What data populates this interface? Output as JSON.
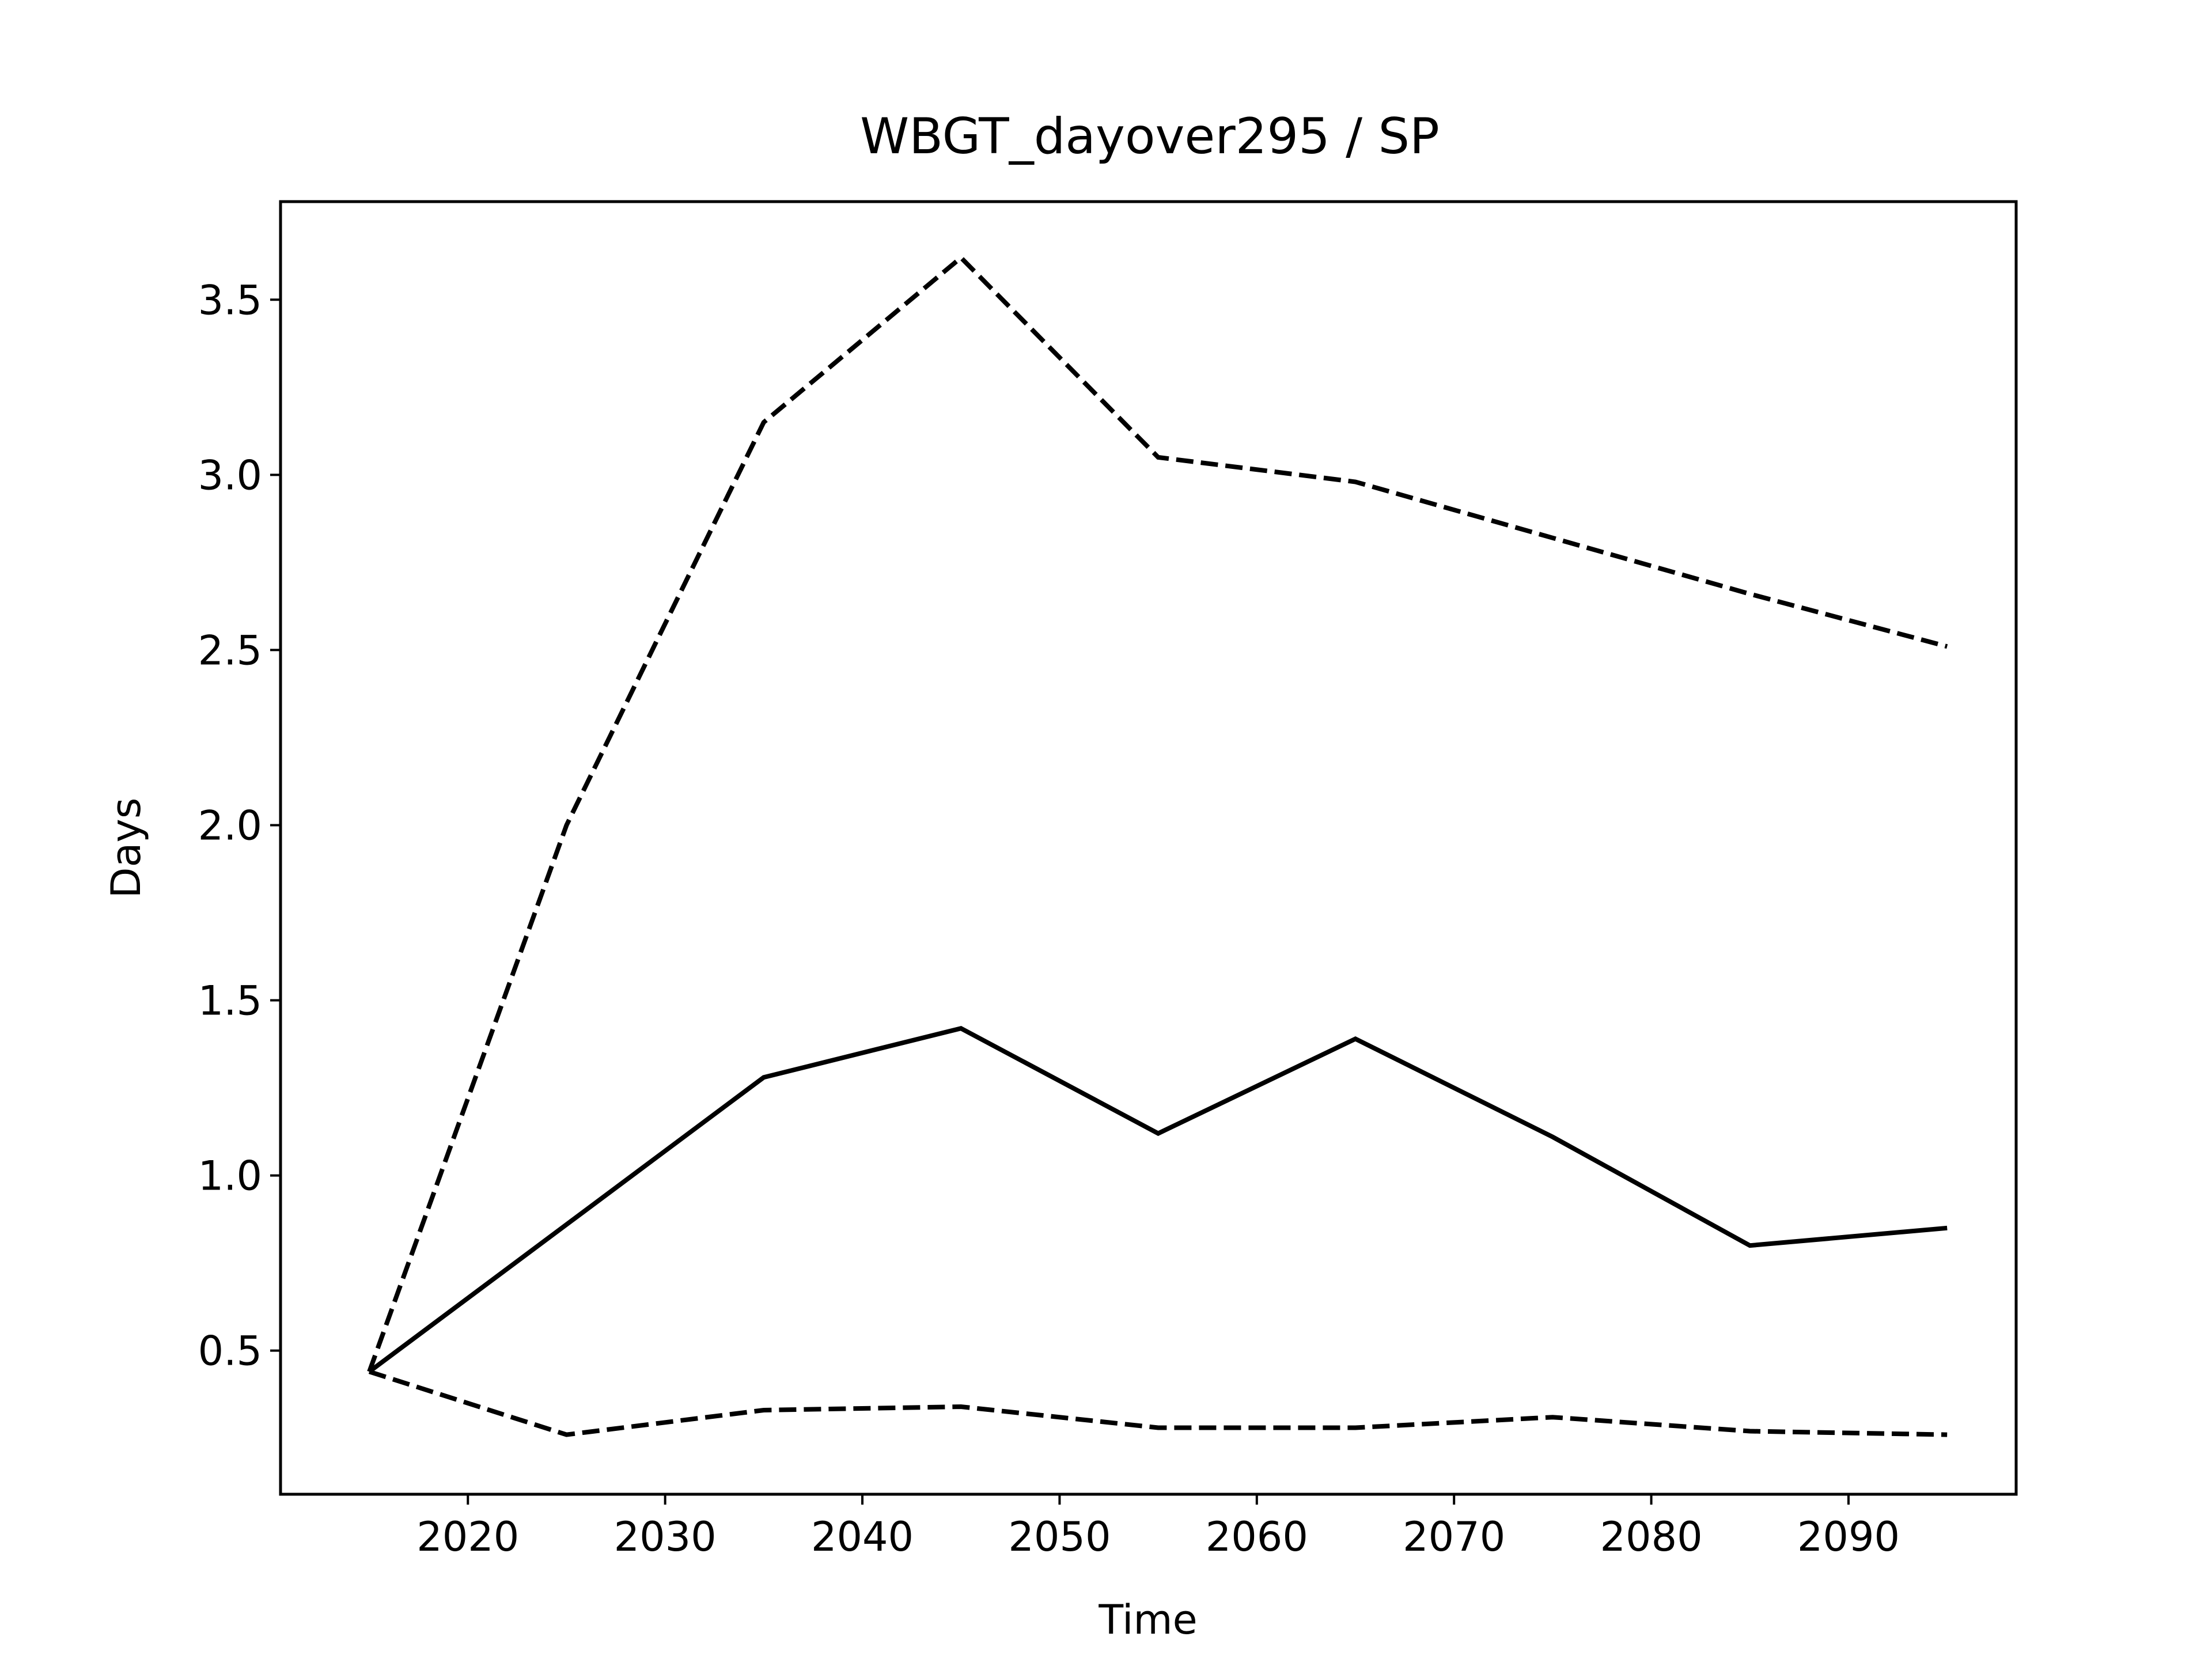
{
  "chart_data": {
    "type": "line",
    "title": "WBGT_dayover295 / SP",
    "xlabel": "Time",
    "ylabel": "Days",
    "x": [
      2015,
      2025,
      2035,
      2045,
      2055,
      2065,
      2075,
      2085,
      2095
    ],
    "xlim": [
      2010.5,
      2098.5
    ],
    "ylim": [
      0.09,
      3.78
    ],
    "xticks": [
      2020,
      2030,
      2040,
      2050,
      2060,
      2070,
      2080,
      2090
    ],
    "xtick_labels": [
      "2020",
      "2030",
      "2040",
      "2050",
      "2060",
      "2070",
      "2080",
      "2090"
    ],
    "yticks": [
      0.5,
      1.0,
      1.5,
      2.0,
      2.5,
      3.0,
      3.5
    ],
    "ytick_labels": [
      "0.5",
      "1.0",
      "1.5",
      "2.0",
      "2.5",
      "3.0",
      "3.5"
    ],
    "grid": false,
    "legend": "none",
    "series": [
      {
        "style": "solid",
        "color": "#000000",
        "values": [
          0.44,
          0.86,
          1.28,
          1.42,
          1.12,
          1.39,
          1.11,
          0.8,
          0.85
        ]
      },
      {
        "style": "dashed",
        "color": "#000000",
        "values": [
          0.44,
          2.0,
          3.15,
          3.62,
          3.05,
          2.98,
          2.82,
          2.66,
          2.51
        ]
      },
      {
        "style": "dashed",
        "color": "#000000",
        "values": [
          0.44,
          0.26,
          0.33,
          0.34,
          0.28,
          0.28,
          0.31,
          0.27,
          0.26
        ]
      }
    ]
  }
}
